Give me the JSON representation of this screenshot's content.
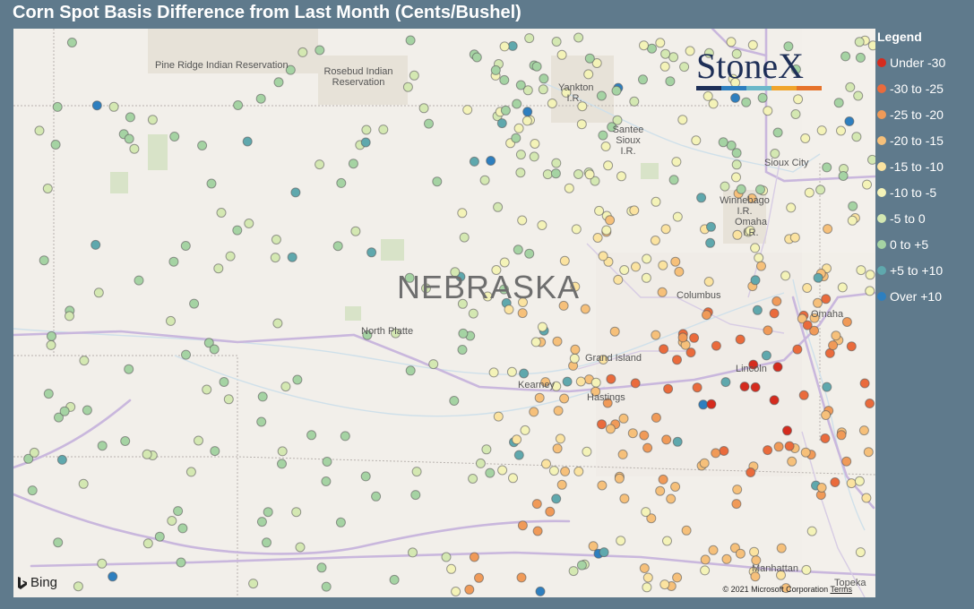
{
  "title": "Corn Spot Basis Difference from Last Month (Cents/Bushel)",
  "legend": {
    "title": "Legend",
    "items": [
      {
        "label": "Under -30",
        "color": "#d52b1e"
      },
      {
        "label": "-30 to -25",
        "color": "#ea6b3c"
      },
      {
        "label": "-25 to -20",
        "color": "#f09a58"
      },
      {
        "label": "-20 to -15",
        "color": "#f6c07a"
      },
      {
        "label": "-15 to -10",
        "color": "#fbe3a0"
      },
      {
        "label": "-10 to -5",
        "color": "#f4f3b8"
      },
      {
        "label": "-5 to 0",
        "color": "#d4e8b2"
      },
      {
        "label": "0 to +5",
        "color": "#a5d3a3"
      },
      {
        "label": "+5 to +10",
        "color": "#5fa8ad"
      },
      {
        "label": "Over +10",
        "color": "#2e7fbf"
      }
    ]
  },
  "map": {
    "state_label": "NEBRASKA",
    "places": {
      "pine_ridge": "Pine Ridge Indian Reservation",
      "rosebud": "Rosebud Indian Reservation",
      "yankton": "Yankton I.R.",
      "santee": "Santee Sioux I.R.",
      "sioux_city": "Sioux City",
      "winnebago": "Winnebago I.R.",
      "omaha_ir": "Omaha I.R.",
      "columbus": "Columbus",
      "omaha": "Omaha",
      "north_platte": "North Platte",
      "grand_island": "Grand Island",
      "kearney": "Kearney",
      "hastings": "Hastings",
      "lincoln": "Lincoln",
      "manhattan": "Manhattan",
      "topeka": "Topeka"
    },
    "copyright": "© 2021 Microsoft Corporation",
    "terms": "Terms",
    "bing": "Bing"
  },
  "logo": {
    "text": "StoneX",
    "bar_colors": [
      "#1e2f57",
      "#2e7fbf",
      "#6bb8c9",
      "#f0a52c",
      "#e6732b"
    ]
  }
}
